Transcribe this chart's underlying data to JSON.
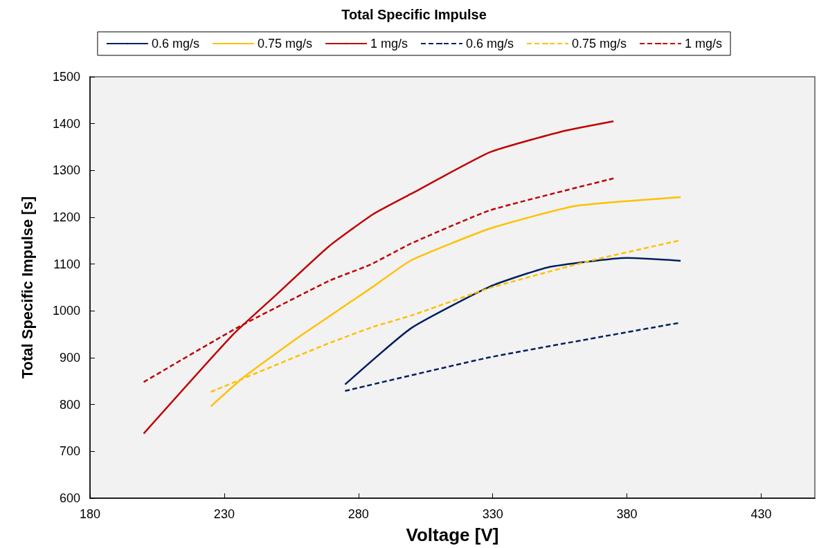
{
  "chart_data": {
    "type": "line",
    "title": "Total Specific Impulse",
    "xlabel": "Voltage [V]",
    "ylabel": "Total Specific Impulse [s]",
    "xlim": [
      180,
      450
    ],
    "xticks": [
      180,
      230,
      280,
      330,
      380,
      430
    ],
    "ylim": [
      600,
      1500
    ],
    "yticks": [
      600,
      700,
      800,
      900,
      1000,
      1100,
      1200,
      1300,
      1400,
      1500
    ],
    "grid": false,
    "legend": "top",
    "marker": "none",
    "series": [
      {
        "name": "0.6 mg/s",
        "color": "#002060",
        "line_style": "solid",
        "x": [
          275,
          299.6,
          329,
          350.5,
          380,
          400
        ],
        "values": [
          843,
          963,
          1052,
          1093,
          1113,
          1107
        ]
      },
      {
        "name": "0.75 mg/s",
        "color": "#ffc000",
        "line_style": "solid",
        "x": [
          225,
          237.6,
          259,
          285.5,
          299.6,
          329,
          360.6,
          400
        ],
        "values": [
          796,
          860,
          949,
          1052,
          1108,
          1176,
          1224,
          1243
        ]
      },
      {
        "name": "1 mg/s",
        "color": "#c00000",
        "line_style": "solid",
        "x": [
          200,
          233,
          248.7,
          269,
          285.3,
          299.6,
          329,
          355.6,
          375
        ],
        "values": [
          738,
          948,
          1031,
          1138,
          1206,
          1250,
          1339,
          1383,
          1405
        ]
      },
      {
        "name": "0.6 mg/s",
        "color": "#002060",
        "line_style": "dashed",
        "x": [
          275,
          329,
          400
        ],
        "values": [
          829,
          901,
          975
        ]
      },
      {
        "name": "0.75 mg/s",
        "color": "#ffc000",
        "line_style": "dashed",
        "x": [
          225,
          269,
          285.5,
          299.6,
          329,
          367,
          400
        ],
        "values": [
          827,
          931,
          966,
          990,
          1049,
          1108,
          1151
        ]
      },
      {
        "name": "1 mg/s",
        "color": "#c00000",
        "line_style": "dashed",
        "x": [
          200,
          234.5,
          269,
          284.5,
          299.6,
          329.1,
          375
        ],
        "values": [
          848,
          963,
          1064,
          1099,
          1144,
          1215,
          1283
        ]
      }
    ]
  }
}
